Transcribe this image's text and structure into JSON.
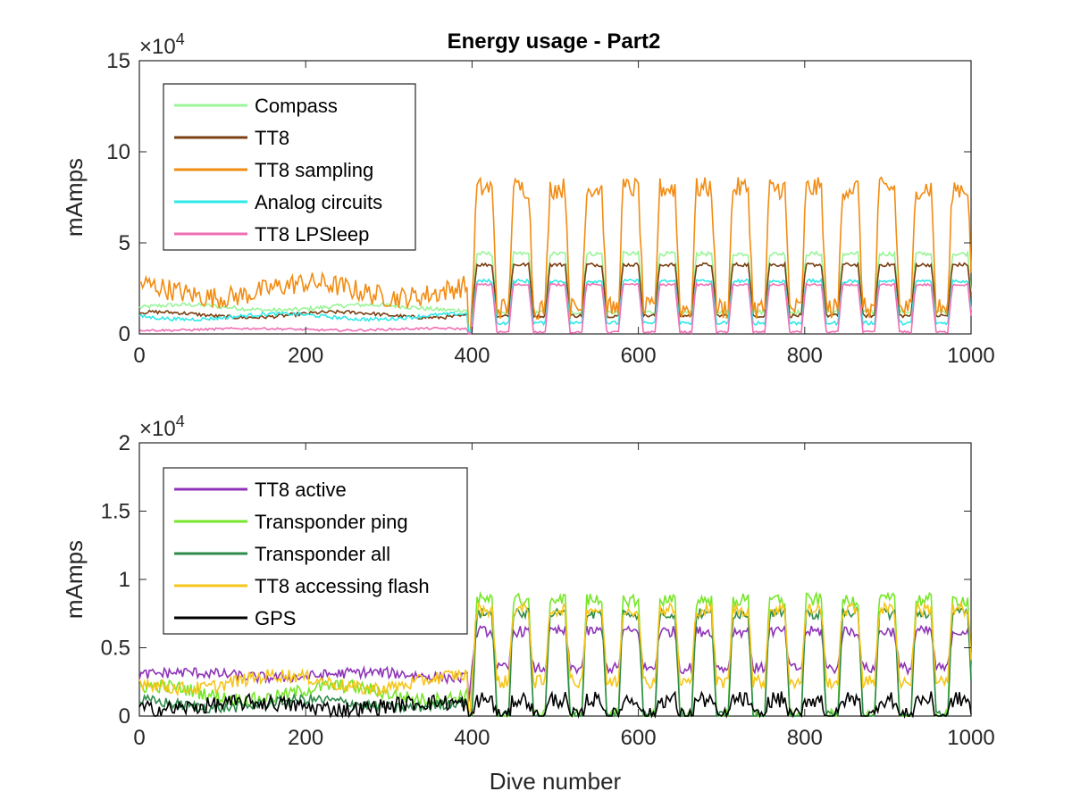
{
  "figure": {
    "title": "Energy usage - Part2"
  },
  "chart_data": [
    {
      "type": "line",
      "title": "Energy usage - Part2",
      "xlabel": "",
      "ylabel": "mAmps",
      "xlim": [
        0,
        1000
      ],
      "ylim": [
        0,
        15
      ],
      "y_multiplier": "×10^4",
      "x_ticks": [
        "0",
        "200",
        "400",
        "600",
        "800",
        "1000"
      ],
      "y_ticks": [
        "0",
        "5",
        "10",
        "15"
      ],
      "legend_position": "top-left",
      "grid": false,
      "series": [
        {
          "name": "Compass",
          "color": "#98F598",
          "low_phase1": 1.3,
          "high_phase1": 1.6,
          "low_phase2": 1.2,
          "high_phase2": 4.4,
          "noise": 0.12
        },
        {
          "name": "TT8",
          "color": "#7B3F12",
          "low_phase1": 0.9,
          "high_phase1": 1.2,
          "low_phase2": 1.0,
          "high_phase2": 3.8,
          "noise": 0.1
        },
        {
          "name": "TT8 sampling",
          "color": "#F28C12",
          "low_phase1": 2.0,
          "high_phase1": 2.8,
          "low_phase2": 1.4,
          "high_phase2": 8.0,
          "noise": 0.6
        },
        {
          "name": "Analog circuits",
          "color": "#2FE8E8",
          "low_phase1": 0.8,
          "high_phase1": 1.1,
          "low_phase2": 0.6,
          "high_phase2": 2.9,
          "noise": 0.1
        },
        {
          "name": "TT8 LPSleep",
          "color": "#EF6FB4",
          "low_phase1": 0.2,
          "high_phase1": 0.3,
          "low_phase2": 0.1,
          "high_phase2": 2.7,
          "noise": 0.06
        }
      ]
    },
    {
      "type": "line",
      "title": "",
      "xlabel": "Dive number",
      "ylabel": "mAmps",
      "xlim": [
        0,
        1000
      ],
      "ylim": [
        0,
        2
      ],
      "y_multiplier": "×10^4",
      "x_ticks": [
        "0",
        "200",
        "400",
        "600",
        "800",
        "1000"
      ],
      "y_ticks": [
        "0",
        "0.5",
        "1",
        "1.5",
        "2"
      ],
      "legend_position": "top-left",
      "grid": false,
      "series": [
        {
          "name": "TT8 active",
          "color": "#8E34B8",
          "low_phase1": 0.28,
          "high_phase1": 0.32,
          "low_phase2": 0.35,
          "high_phase2": 0.62,
          "noise": 0.04
        },
        {
          "name": "Transponder ping",
          "color": "#77E62A",
          "low_phase1": 0.12,
          "high_phase1": 0.22,
          "low_phase2": 0.0,
          "high_phase2": 0.85,
          "noise": 0.05
        },
        {
          "name": "Transponder all",
          "color": "#2E8B4A",
          "low_phase1": 0.06,
          "high_phase1": 0.12,
          "low_phase2": 0.0,
          "high_phase2": 0.75,
          "noise": 0.04
        },
        {
          "name": "TT8 accessing flash",
          "color": "#F5C518",
          "low_phase1": 0.2,
          "high_phase1": 0.3,
          "low_phase2": 0.25,
          "high_phase2": 0.78,
          "noise": 0.05
        },
        {
          "name": "GPS",
          "color": "#000000",
          "low_phase1": 0.05,
          "high_phase1": 0.1,
          "low_phase2": 0.0,
          "high_phase2": 0.12,
          "noise": 0.06
        }
      ]
    }
  ]
}
